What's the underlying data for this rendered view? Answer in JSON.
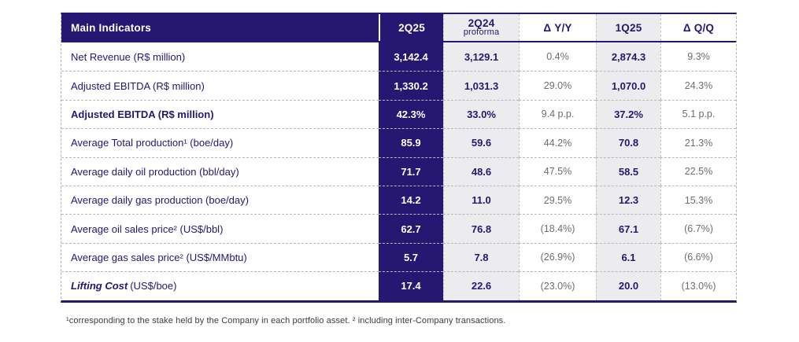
{
  "brand": {
    "navy": "#251772",
    "light_gray_column": "#ececee",
    "delta_text_gray": "#6e6e6e",
    "dashed_border": "#b8b8b8"
  },
  "table": {
    "header": {
      "main": "Main Indicators",
      "columns": [
        {
          "label": "2Q25",
          "sub": ""
        },
        {
          "label": "2Q24",
          "sub": "proforma"
        },
        {
          "label": "Δ Y/Y",
          "sub": ""
        },
        {
          "label": "1Q25",
          "sub": ""
        },
        {
          "label": "Δ Q/Q",
          "sub": ""
        }
      ]
    },
    "rows": [
      {
        "label": "Net Revenue (R$ million)",
        "values": [
          "3,142.4",
          "3,129.1",
          "0.4%",
          "2,874.3",
          "9.3%"
        ]
      },
      {
        "label": "Adjusted EBITDA (R$ million)",
        "values": [
          "1,330.2",
          "1,031.3",
          "29.0%",
          "1,070.0",
          "24.3%"
        ]
      },
      {
        "label": "Adjusted EBITDA (R$ million)",
        "bold": true,
        "values": [
          "42.3%",
          "33.0%",
          "9.4 p.p.",
          "37.2%",
          "5.1 p.p."
        ]
      },
      {
        "label": "Average Total production¹ (boe/day)",
        "values": [
          "85.9",
          "59.6",
          "44.2%",
          "70.8",
          "21.3%"
        ]
      },
      {
        "label": "Average daily oil production (bbl/day)",
        "values": [
          "71.7",
          "48.6",
          "47.5%",
          "58.5",
          "22.5%"
        ]
      },
      {
        "label": "Average daily gas production (boe/day)",
        "values": [
          "14.2",
          "11.0",
          "29.5%",
          "12.3",
          "15.3%"
        ]
      },
      {
        "label": "Average oil sales price² (US$/bbl)",
        "values": [
          "62.7",
          "76.8",
          "(18.4%)",
          "67.1",
          "(6.7%)"
        ]
      },
      {
        "label": "Average gas sales price² (US$/MMbtu)",
        "values": [
          "5.7",
          "7.8",
          "(26.9%)",
          "6.1",
          "(6.6%)"
        ]
      },
      {
        "label_em": "Lifting Cost",
        "label": " (US$/boe)",
        "values": [
          "17.4",
          "22.6",
          "(23.0%)",
          "20.0",
          "(13.0%)"
        ]
      }
    ]
  },
  "footnote": "¹corresponding to the stake held by the Company in each portfolio asset. ² including inter-Company transactions."
}
